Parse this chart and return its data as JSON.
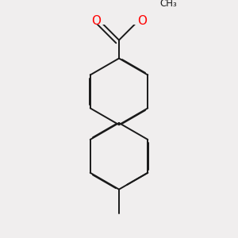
{
  "bg_color": "#f0eeee",
  "bond_color": "#1a1a1a",
  "oxygen_color": "#ff0000",
  "lw": 1.4,
  "dbo": 0.012,
  "figsize": [
    3.0,
    3.0
  ],
  "dpi": 100,
  "xlim": [
    -1.6,
    1.6
  ],
  "ylim": [
    -2.6,
    2.0
  ],
  "r1cx": 0.0,
  "r1cy": 0.55,
  "r2cx": 0.0,
  "r2cy": -0.85,
  "ring_r": 0.72
}
